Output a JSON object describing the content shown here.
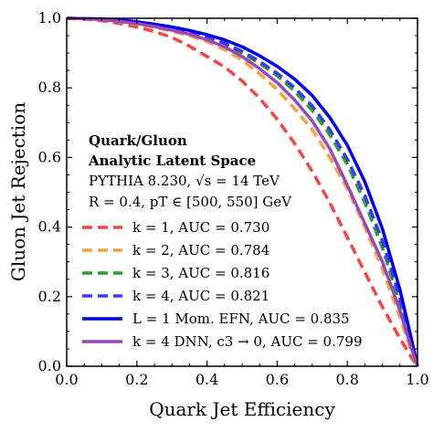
{
  "chart_data": {
    "type": "line",
    "xlabel": "Quark Jet Efficiency",
    "ylabel": "Gluon Jet Rejection",
    "xlim": [
      0,
      1
    ],
    "ylim": [
      0,
      1
    ],
    "xticks": [
      "0.0",
      "0.2",
      "0.4",
      "0.6",
      "0.8",
      "1.0"
    ],
    "yticks": [
      "0.0",
      "0.2",
      "0.4",
      "0.6",
      "0.8",
      "1.0"
    ],
    "grid": false,
    "legend_position": "lower-left",
    "annotation": {
      "line1": "Quark/Gluon",
      "line2": "Analytic Latent Space",
      "line3": "PYTHIA 8.230, √s = 14 TeV",
      "line4": "R = 0.4, pT ∈ [500, 550] GeV"
    },
    "series": [
      {
        "name": "k = 1, AUC = 0.730",
        "color": "#f44444",
        "dash": "dashed",
        "x": [
          0,
          0.05,
          0.1,
          0.15,
          0.2,
          0.25,
          0.3,
          0.35,
          0.4,
          0.45,
          0.5,
          0.55,
          0.6,
          0.65,
          0.7,
          0.75,
          0.8,
          0.85,
          0.9,
          0.95,
          0.98,
          1.0
        ],
        "y": [
          1.0,
          0.998,
          0.993,
          0.985,
          0.975,
          0.962,
          0.945,
          0.92,
          0.89,
          0.86,
          0.82,
          0.77,
          0.71,
          0.64,
          0.56,
          0.47,
          0.37,
          0.27,
          0.17,
          0.08,
          0.03,
          0.0
        ]
      },
      {
        "name": "k = 2, AUC = 0.784",
        "color": "#f8a040",
        "dash": "dashed",
        "x": [
          0,
          0.05,
          0.1,
          0.15,
          0.2,
          0.25,
          0.3,
          0.35,
          0.4,
          0.45,
          0.5,
          0.55,
          0.6,
          0.65,
          0.7,
          0.75,
          0.8,
          0.85,
          0.9,
          0.95,
          0.98,
          1.0
        ],
        "y": [
          1.0,
          0.999,
          0.996,
          0.99,
          0.983,
          0.974,
          0.963,
          0.95,
          0.933,
          0.91,
          0.88,
          0.84,
          0.795,
          0.74,
          0.68,
          0.6,
          0.51,
          0.4,
          0.28,
          0.14,
          0.05,
          0.0
        ]
      },
      {
        "name": "k = 3, AUC = 0.816",
        "color": "#2ca02c",
        "dash": "dashed",
        "x": [
          0,
          0.05,
          0.1,
          0.15,
          0.2,
          0.25,
          0.3,
          0.35,
          0.4,
          0.45,
          0.5,
          0.55,
          0.6,
          0.65,
          0.7,
          0.75,
          0.8,
          0.85,
          0.9,
          0.95,
          0.98,
          1.0
        ],
        "y": [
          1.0,
          0.999,
          0.997,
          0.992,
          0.986,
          0.978,
          0.968,
          0.957,
          0.943,
          0.925,
          0.9,
          0.87,
          0.835,
          0.79,
          0.735,
          0.665,
          0.58,
          0.47,
          0.34,
          0.18,
          0.07,
          0.0
        ]
      },
      {
        "name": "k = 4, AUC = 0.821",
        "color": "#3a3af0",
        "dash": "dashed",
        "x": [
          0,
          0.05,
          0.1,
          0.15,
          0.2,
          0.25,
          0.3,
          0.35,
          0.4,
          0.45,
          0.5,
          0.55,
          0.6,
          0.65,
          0.7,
          0.75,
          0.8,
          0.85,
          0.9,
          0.95,
          0.98,
          1.0
        ],
        "y": [
          1.0,
          0.999,
          0.997,
          0.993,
          0.987,
          0.979,
          0.97,
          0.959,
          0.946,
          0.928,
          0.905,
          0.876,
          0.842,
          0.8,
          0.748,
          0.68,
          0.595,
          0.49,
          0.36,
          0.195,
          0.08,
          0.0
        ]
      },
      {
        "name": "L = 1 Mom. EFN, AUC = 0.835",
        "color": "#0000ee",
        "dash": "solid",
        "x": [
          0,
          0.05,
          0.1,
          0.15,
          0.2,
          0.25,
          0.3,
          0.35,
          0.4,
          0.45,
          0.5,
          0.55,
          0.6,
          0.65,
          0.7,
          0.75,
          0.8,
          0.85,
          0.9,
          0.95,
          0.98,
          1.0
        ],
        "y": [
          1.0,
          0.999,
          0.998,
          0.995,
          0.99,
          0.983,
          0.975,
          0.965,
          0.953,
          0.938,
          0.918,
          0.892,
          0.862,
          0.825,
          0.778,
          0.715,
          0.635,
          0.53,
          0.395,
          0.22,
          0.09,
          0.0
        ]
      },
      {
        "name": "k = 4 DNN, c3 → 0, AUC = 0.799",
        "color": "#9a48b8",
        "dash": "solid",
        "x": [
          0,
          0.05,
          0.1,
          0.15,
          0.2,
          0.25,
          0.3,
          0.35,
          0.4,
          0.45,
          0.5,
          0.55,
          0.6,
          0.65,
          0.7,
          0.75,
          0.8,
          0.85,
          0.9,
          0.95,
          0.98,
          1.0
        ],
        "y": [
          1.0,
          0.999,
          0.996,
          0.991,
          0.985,
          0.976,
          0.966,
          0.954,
          0.938,
          0.918,
          0.89,
          0.855,
          0.815,
          0.765,
          0.705,
          0.625,
          0.52,
          0.41,
          0.3,
          0.16,
          0.06,
          0.0
        ]
      }
    ]
  }
}
